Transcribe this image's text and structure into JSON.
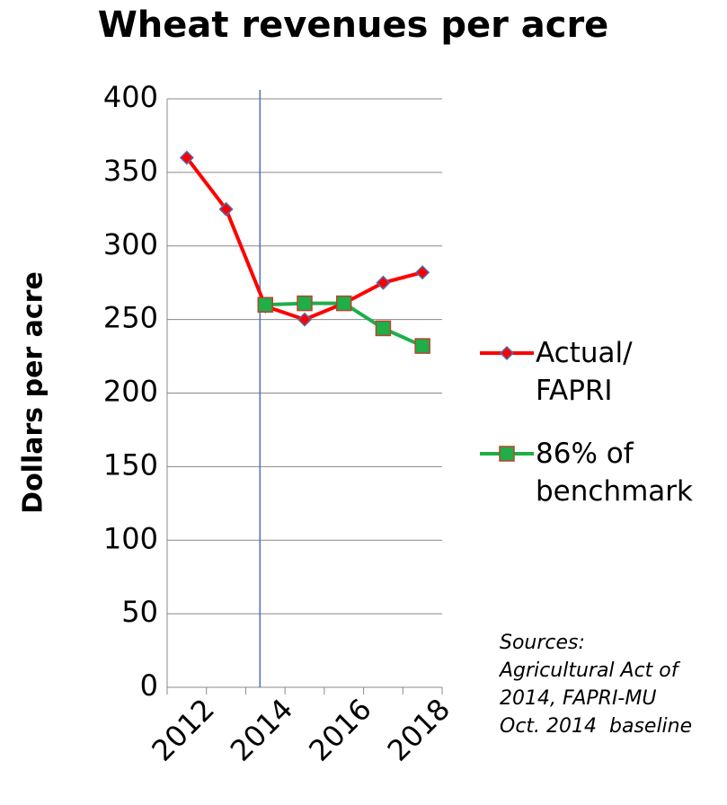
{
  "chart_data": {
    "type": "line",
    "title": "Wheat revenues per acre",
    "y_label": "Dollars per acre",
    "categories": [
      "2012",
      null,
      "2014",
      null,
      "2016",
      null,
      "2018"
    ],
    "series": [
      {
        "name": "Actual/ FAPRI",
        "color": "#ff0000",
        "marker": "diamond",
        "values": [
          360,
          325,
          259,
          250,
          261,
          275,
          282
        ]
      },
      {
        "name": "86% of benchmark",
        "color": "#1fae48",
        "marker": "square",
        "values": [
          null,
          null,
          260,
          261,
          261,
          244,
          232
        ]
      }
    ],
    "ylim": [
      0,
      400
    ],
    "yticks": [
      0,
      50,
      100,
      150,
      200,
      250,
      300,
      350,
      400
    ],
    "grid": true,
    "reference_line_category": 2,
    "annotation": [
      "Sources:",
      "Agricultural Act of",
      "2014, FAPRI-MU",
      "Oct. 2014  baseline"
    ]
  }
}
